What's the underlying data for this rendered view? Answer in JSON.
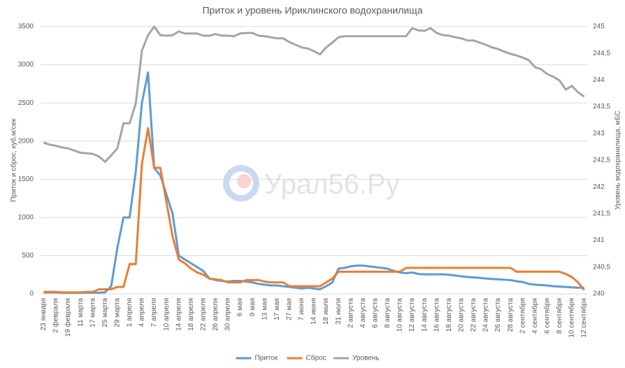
{
  "chart_data": {
    "type": "line",
    "title": "Приток и уровень Ириклинского водохранилища",
    "y_label": "Приток и сброс, куб.м/сек",
    "y2_label": "Уровень водохранилища, мБС",
    "watermark": "Урал56.Ру",
    "categories": [
      "23 января",
      null,
      "2 февраля",
      null,
      "19 февраля",
      null,
      "11 марта",
      null,
      "17 марта",
      null,
      "25 марта",
      null,
      "29 марта",
      null,
      "1 апреля",
      null,
      "4 апреля",
      null,
      "7 апреля",
      null,
      "10 апреля",
      null,
      "14 апреля",
      null,
      "18 апреля",
      null,
      "22 апреля",
      null,
      "26 апреля",
      null,
      "30 апреля",
      null,
      "6 мая",
      null,
      "9 мая",
      null,
      "13 мая",
      null,
      "17 мая",
      null,
      "27 мая",
      null,
      "7 июня",
      null,
      "14 июня",
      null,
      "18 июля",
      null,
      "31 июля",
      null,
      "2 августа",
      null,
      "4 августа",
      null,
      "6 августа",
      null,
      "8 августа",
      null,
      "10 августа",
      null,
      "12 августа",
      null,
      "14 августа",
      null,
      "16 августа",
      null,
      "18 августа",
      null,
      "20 августа",
      null,
      "22 августа",
      null,
      "24 августа",
      null,
      "26 августа",
      null,
      "28 августа",
      null,
      "2 сентября",
      null,
      "4 сентября",
      null,
      "6 сентября",
      null,
      "8 сентября",
      null,
      "10 сентября",
      null,
      "12 сентября"
    ],
    "series": [
      {
        "name": "Приток",
        "color": "#5b9bd5",
        "values": [
          20,
          20,
          20,
          15,
          15,
          15,
          15,
          15,
          15,
          15,
          20,
          100,
          600,
          1000,
          1000,
          1600,
          2500,
          2900,
          1650,
          1550,
          1300,
          1050,
          500,
          450,
          400,
          350,
          300,
          200,
          180,
          170,
          160,
          170,
          170,
          160,
          150,
          130,
          120,
          110,
          110,
          100,
          90,
          80,
          70,
          80,
          70,
          60,
          100,
          150,
          330,
          340,
          360,
          370,
          370,
          360,
          350,
          340,
          330,
          300,
          280,
          270,
          280,
          260,
          255,
          255,
          255,
          255,
          250,
          240,
          230,
          220,
          215,
          210,
          200,
          195,
          190,
          185,
          180,
          165,
          155,
          130,
          120,
          115,
          110,
          100,
          95,
          90,
          85,
          80,
          80
        ]
      },
      {
        "name": "Сброс",
        "color": "#ed7d31",
        "values": [
          25,
          25,
          25,
          20,
          20,
          20,
          20,
          25,
          25,
          60,
          60,
          60,
          90,
          90,
          390,
          390,
          1700,
          2170,
          1650,
          1650,
          1200,
          750,
          450,
          400,
          330,
          280,
          250,
          200,
          190,
          180,
          150,
          150,
          150,
          180,
          180,
          180,
          160,
          150,
          150,
          150,
          100,
          100,
          100,
          100,
          100,
          100,
          150,
          200,
          290,
          290,
          290,
          290,
          290,
          290,
          290,
          290,
          290,
          290,
          290,
          340,
          340,
          340,
          340,
          340,
          340,
          340,
          340,
          340,
          340,
          340,
          340,
          340,
          340,
          340,
          340,
          340,
          340,
          290,
          290,
          290,
          290,
          290,
          290,
          290,
          290,
          260,
          220,
          150,
          50
        ]
      },
      {
        "name": "Уровень",
        "color": "#a5a5a5",
        "axis": "y2",
        "values": [
          242.83,
          242.79,
          242.77,
          242.74,
          242.72,
          242.68,
          242.64,
          242.63,
          242.62,
          242.57,
          242.47,
          242.59,
          242.72,
          243.19,
          243.19,
          243.56,
          244.55,
          244.84,
          245,
          244.84,
          244.83,
          244.84,
          244.91,
          244.87,
          244.87,
          244.87,
          244.83,
          244.83,
          244.86,
          244.83,
          244.83,
          244.82,
          244.87,
          244.88,
          244.88,
          244.83,
          244.82,
          244.8,
          244.78,
          244.78,
          244.71,
          244.66,
          244.61,
          244.59,
          244.54,
          244.48,
          244.61,
          244.7,
          244.8,
          244.82,
          244.82,
          244.82,
          244.82,
          244.82,
          244.82,
          244.82,
          244.82,
          244.82,
          244.82,
          244.82,
          244.97,
          244.93,
          244.92,
          244.97,
          244.88,
          244.84,
          244.83,
          244.8,
          244.78,
          244.74,
          244.74,
          244.7,
          244.66,
          244.61,
          244.58,
          244.53,
          244.49,
          244.46,
          244.42,
          244.37,
          244.24,
          244.2,
          244.11,
          244.06,
          243.99,
          243.82,
          243.89,
          243.77,
          243.69
        ]
      }
    ],
    "ylim": [
      0,
      3500
    ],
    "yticks": [
      0,
      500,
      1000,
      1500,
      2000,
      2500,
      3000,
      3500
    ],
    "y2lim": [
      240,
      245
    ],
    "y2ticks": [
      240,
      {
        "value": 240.5,
        "label": "240,5"
      },
      241,
      {
        "value": 241.5,
        "label": "241,5"
      },
      242,
      {
        "value": 242.5,
        "label": "242,5"
      },
      243,
      {
        "value": 243.5,
        "label": "243,5"
      },
      244,
      {
        "value": 244.5,
        "label": "244,5"
      },
      245
    ],
    "grid": true,
    "legend": "bottom"
  }
}
